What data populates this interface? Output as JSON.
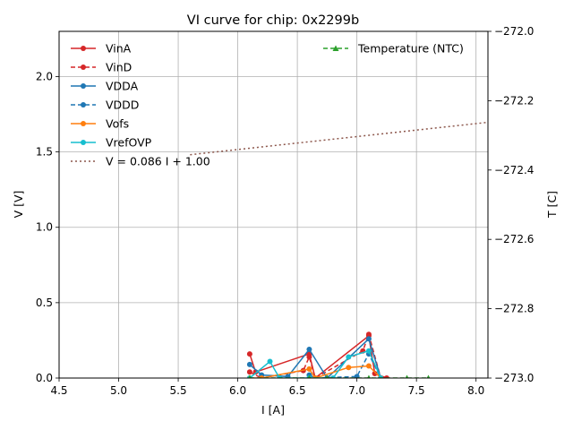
{
  "chart_data": {
    "type": "line",
    "title": "VI curve for chip: 0x2299b",
    "xlabel": "I [A]",
    "ylabel": "V [V]",
    "y2label": "T [C]",
    "xlim": [
      4.5,
      8.1
    ],
    "ylim": [
      0.0,
      2.3
    ],
    "y2lim": [
      -273.0,
      -272.0
    ],
    "xticks": [
      "4.5",
      "5.0",
      "5.5",
      "6.0",
      "6.5",
      "7.0",
      "7.5",
      "8.0"
    ],
    "yticks": [
      "0.0",
      "0.5",
      "1.0",
      "1.5",
      "2.0"
    ],
    "y2ticks": [
      "−273.0",
      "−272.8",
      "−272.6",
      "−272.4",
      "−272.2",
      "−272.0"
    ],
    "grid": true,
    "legend_left": [
      "VinA",
      "VinD",
      "VDDA",
      "VDDD",
      "Vofs",
      "VrefOVP",
      "V = 0.086 I + 1.00"
    ],
    "legend_right": [
      "Temperature (NTC)"
    ],
    "colors": {
      "VinA": "#d62728",
      "VinD": "#d62728",
      "VDDA": "#1f77b4",
      "VDDD": "#1f77b4",
      "Vofs": "#ff7f0e",
      "VrefOVP": "#17becf",
      "fit": "#8c564b",
      "temp": "#2ca02c"
    },
    "series": [
      {
        "name": "VinA",
        "style": "solid",
        "marker": "circle",
        "color": "#d62728",
        "x": [
          6.1,
          6.15,
          6.6,
          6.65,
          7.1,
          7.15,
          7.25
        ],
        "y": [
          0.16,
          0.04,
          0.16,
          0.0,
          0.28,
          0.03,
          0.0
        ]
      },
      {
        "name": "VinD",
        "style": "dashed",
        "marker": "circle",
        "color": "#d62728",
        "x": [
          6.1,
          6.2,
          6.55,
          6.6,
          6.65,
          7.05,
          7.1,
          7.2
        ],
        "y": [
          0.04,
          0.0,
          0.05,
          0.14,
          0.0,
          0.18,
          0.29,
          0.0
        ]
      },
      {
        "name": "VDDA",
        "style": "solid",
        "marker": "circle",
        "color": "#1f77b4",
        "x": [
          6.1,
          6.2,
          6.42,
          6.6,
          6.75,
          7.1,
          7.2
        ],
        "y": [
          0.09,
          0.02,
          0.01,
          0.19,
          0.0,
          0.26,
          0.0
        ]
      },
      {
        "name": "VDDD",
        "style": "dashed",
        "marker": "circle",
        "color": "#1f77b4",
        "x": [
          6.6,
          6.65,
          7.0,
          7.1,
          7.2
        ],
        "y": [
          0.02,
          0.0,
          0.01,
          0.16,
          0.0
        ]
      },
      {
        "name": "Vofs",
        "style": "solid",
        "marker": "circle",
        "color": "#ff7f0e",
        "x": [
          6.1,
          6.2,
          6.6,
          6.65,
          6.93,
          7.1,
          7.2
        ],
        "y": [
          0.0,
          0.0,
          0.06,
          0.0,
          0.07,
          0.08,
          0.0
        ]
      },
      {
        "name": "VrefOVP",
        "style": "solid",
        "marker": "circle",
        "color": "#17becf",
        "x": [
          6.1,
          6.27,
          6.35,
          6.6,
          6.8,
          6.93,
          7.1,
          7.2
        ],
        "y": [
          0.0,
          0.11,
          0.0,
          0.0,
          0.0,
          0.14,
          0.18,
          0.0
        ]
      },
      {
        "name": "V = 0.086 I + 1.00",
        "style": "dotted",
        "marker": "none",
        "color": "#8c564b",
        "slope": 0.086,
        "intercept": 1.0,
        "x_range": [
          5.6,
          8.1
        ]
      },
      {
        "name": "Temperature (NTC)",
        "axis": "right",
        "style": "dashed",
        "marker": "triangle",
        "color": "#2ca02c",
        "x": [
          6.1,
          6.6,
          6.75,
          7.1,
          7.42,
          7.6
        ],
        "y": [
          -273.0,
          -273.0,
          -273.0,
          -273.0,
          -273.0,
          -273.0
        ]
      }
    ]
  }
}
